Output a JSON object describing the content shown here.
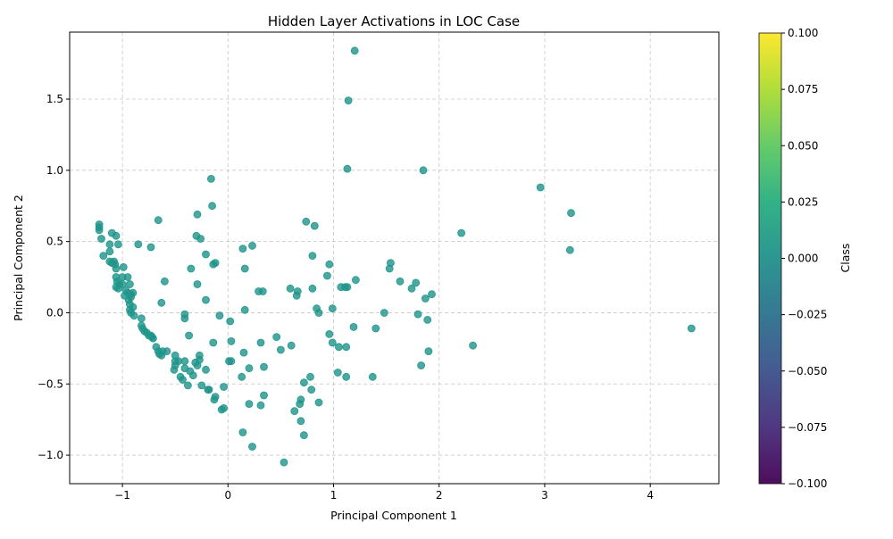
{
  "chart_data": {
    "type": "scatter",
    "title": "Hidden Layer Activations in LOC Case",
    "xlabel": "Principal Component 1",
    "ylabel": "Principal Component 2",
    "xlim": [
      -1.5,
      4.65
    ],
    "ylim": [
      -1.2,
      1.97
    ],
    "xticks": [
      -1,
      0,
      1,
      2,
      3,
      4
    ],
    "xtick_labels": [
      "−1",
      "0",
      "1",
      "2",
      "3",
      "4"
    ],
    "yticks": [
      -1.0,
      -0.5,
      0.0,
      0.5,
      1.0,
      1.5
    ],
    "ytick_labels": [
      "−1.0",
      "−0.5",
      "0.0",
      "0.5",
      "1.0",
      "1.5"
    ],
    "grid": true,
    "point_color": "#21918c",
    "point_alpha": 0.8,
    "colorbar": {
      "label": "Class",
      "range": [
        -0.1,
        0.1
      ],
      "ticks": [
        -0.1,
        -0.075,
        -0.05,
        -0.025,
        0.0,
        0.025,
        0.05,
        0.075,
        0.1
      ],
      "tick_labels": [
        "−0.100",
        "−0.075",
        "−0.050",
        "−0.025",
        "0.000",
        "0.025",
        "0.050",
        "0.075",
        "0.100"
      ],
      "colormap": "viridis"
    },
    "points": [
      [
        -1.22,
        0.62
      ],
      [
        -1.22,
        0.6
      ],
      [
        -1.22,
        0.58
      ],
      [
        -1.2,
        0.52
      ],
      [
        -1.18,
        0.4
      ],
      [
        -1.12,
        0.48
      ],
      [
        -1.12,
        0.43
      ],
      [
        -1.1,
        0.56
      ],
      [
        -1.06,
        0.54
      ],
      [
        -1.04,
        0.48
      ],
      [
        -1.12,
        0.36
      ],
      [
        -1.1,
        0.35
      ],
      [
        -1.08,
        0.36
      ],
      [
        -1.07,
        0.34
      ],
      [
        -1.06,
        0.31
      ],
      [
        -1.06,
        0.25
      ],
      [
        -1.05,
        0.22
      ],
      [
        -1.06,
        0.18
      ],
      [
        -1.04,
        0.17
      ],
      [
        -1.03,
        0.2
      ],
      [
        -1.0,
        0.25
      ],
      [
        -1.0,
        0.2
      ],
      [
        -0.99,
        0.32
      ],
      [
        -0.97,
        0.16
      ],
      [
        -0.95,
        0.25
      ],
      [
        -0.93,
        0.2
      ],
      [
        -0.92,
        0.13
      ],
      [
        -0.98,
        0.12
      ],
      [
        -0.95,
        0.14
      ],
      [
        -0.94,
        0.09
      ],
      [
        -0.92,
        0.11
      ],
      [
        -0.9,
        0.14
      ],
      [
        -0.93,
        0.06
      ],
      [
        -0.93,
        0.02
      ],
      [
        -0.92,
        0.0
      ],
      [
        -0.9,
        0.04
      ],
      [
        -0.89,
        -0.02
      ],
      [
        -0.85,
        0.48
      ],
      [
        -0.73,
        0.46
      ],
      [
        -0.66,
        0.65
      ],
      [
        -0.82,
        -0.04
      ],
      [
        -0.82,
        -0.09
      ],
      [
        -0.81,
        -0.11
      ],
      [
        -0.79,
        -0.13
      ],
      [
        -0.77,
        -0.14
      ],
      [
        -0.75,
        -0.16
      ],
      [
        -0.73,
        -0.16
      ],
      [
        -0.72,
        -0.17
      ],
      [
        -0.71,
        -0.18
      ],
      [
        -0.68,
        -0.24
      ],
      [
        -0.66,
        -0.27
      ],
      [
        -0.65,
        -0.29
      ],
      [
        -0.63,
        -0.3
      ],
      [
        -0.62,
        -0.27
      ],
      [
        -0.58,
        -0.27
      ],
      [
        -0.6,
        0.22
      ],
      [
        -0.63,
        0.07
      ],
      [
        -0.5,
        -0.3
      ],
      [
        -0.5,
        -0.34
      ],
      [
        -0.5,
        -0.37
      ],
      [
        -0.51,
        -0.4
      ],
      [
        -0.47,
        -0.34
      ],
      [
        -0.45,
        -0.45
      ],
      [
        -0.43,
        -0.47
      ],
      [
        -0.41,
        -0.34
      ],
      [
        -0.41,
        -0.39
      ],
      [
        -0.38,
        -0.51
      ],
      [
        -0.36,
        -0.41
      ],
      [
        -0.33,
        -0.44
      ],
      [
        -0.31,
        -0.35
      ],
      [
        -0.29,
        -0.37
      ],
      [
        -0.27,
        -0.3
      ],
      [
        -0.27,
        -0.33
      ],
      [
        -0.25,
        -0.51
      ],
      [
        -0.21,
        -0.4
      ],
      [
        -0.19,
        -0.54
      ],
      [
        -0.18,
        -0.54
      ],
      [
        -0.13,
        -0.61
      ],
      [
        -0.12,
        -0.59
      ],
      [
        -0.06,
        -0.68
      ],
      [
        -0.04,
        -0.67
      ],
      [
        -0.04,
        -0.52
      ],
      [
        -0.41,
        -0.01
      ],
      [
        -0.41,
        -0.04
      ],
      [
        -0.37,
        -0.16
      ],
      [
        -0.35,
        0.31
      ],
      [
        -0.3,
        0.54
      ],
      [
        -0.29,
        0.69
      ],
      [
        -0.29,
        0.2
      ],
      [
        -0.26,
        0.52
      ],
      [
        -0.21,
        0.41
      ],
      [
        -0.21,
        0.09
      ],
      [
        -0.16,
        0.94
      ],
      [
        -0.15,
        0.75
      ],
      [
        -0.14,
        0.34
      ],
      [
        -0.12,
        0.35
      ],
      [
        -0.14,
        -0.21
      ],
      [
        -0.08,
        -0.02
      ],
      [
        0.01,
        -0.34
      ],
      [
        0.02,
        -0.06
      ],
      [
        0.03,
        -0.2
      ],
      [
        0.03,
        -0.34
      ],
      [
        0.13,
        -0.45
      ],
      [
        0.15,
        -0.28
      ],
      [
        0.14,
        -0.84
      ],
      [
        0.14,
        0.45
      ],
      [
        0.16,
        0.31
      ],
      [
        0.16,
        0.02
      ],
      [
        0.2,
        -0.39
      ],
      [
        0.2,
        -0.64
      ],
      [
        0.23,
        -0.94
      ],
      [
        0.23,
        0.47
      ],
      [
        0.29,
        0.15
      ],
      [
        0.31,
        -0.21
      ],
      [
        0.31,
        -0.65
      ],
      [
        0.33,
        0.15
      ],
      [
        0.34,
        -0.38
      ],
      [
        0.34,
        -0.58
      ],
      [
        0.46,
        -0.17
      ],
      [
        0.5,
        -0.26
      ],
      [
        0.53,
        -1.05
      ],
      [
        0.59,
        0.17
      ],
      [
        0.6,
        -0.23
      ],
      [
        0.63,
        -0.69
      ],
      [
        0.65,
        0.12
      ],
      [
        0.66,
        0.15
      ],
      [
        0.68,
        -0.64
      ],
      [
        0.69,
        -0.61
      ],
      [
        0.69,
        -0.76
      ],
      [
        0.72,
        -0.86
      ],
      [
        0.72,
        -0.49
      ],
      [
        0.74,
        0.64
      ],
      [
        0.78,
        -0.45
      ],
      [
        0.79,
        -0.54
      ],
      [
        0.8,
        0.4
      ],
      [
        0.8,
        0.17
      ],
      [
        0.82,
        0.61
      ],
      [
        0.84,
        0.03
      ],
      [
        0.86,
        0.0
      ],
      [
        0.86,
        -0.63
      ],
      [
        0.94,
        0.26
      ],
      [
        0.96,
        0.34
      ],
      [
        0.96,
        -0.15
      ],
      [
        0.99,
        -0.21
      ],
      [
        0.99,
        0.03
      ],
      [
        1.04,
        -0.42
      ],
      [
        1.05,
        -0.24
      ],
      [
        1.07,
        0.18
      ],
      [
        1.11,
        0.18
      ],
      [
        1.12,
        -0.24
      ],
      [
        1.12,
        -0.45
      ],
      [
        1.13,
        0.18
      ],
      [
        1.13,
        1.01
      ],
      [
        1.14,
        1.49
      ],
      [
        1.19,
        -0.1
      ],
      [
        1.2,
        1.84
      ],
      [
        1.21,
        0.23
      ],
      [
        1.37,
        -0.45
      ],
      [
        1.4,
        -0.11
      ],
      [
        1.48,
        0.0
      ],
      [
        1.53,
        0.31
      ],
      [
        1.54,
        0.35
      ],
      [
        1.63,
        0.22
      ],
      [
        1.74,
        0.17
      ],
      [
        1.78,
        0.21
      ],
      [
        1.8,
        -0.01
      ],
      [
        1.83,
        -0.37
      ],
      [
        1.85,
        1.0
      ],
      [
        1.87,
        0.1
      ],
      [
        1.89,
        -0.05
      ],
      [
        1.9,
        -0.27
      ],
      [
        1.93,
        0.13
      ],
      [
        2.21,
        0.56
      ],
      [
        2.32,
        -0.23
      ],
      [
        2.96,
        0.88
      ],
      [
        3.24,
        0.44
      ],
      [
        3.25,
        0.7
      ],
      [
        4.39,
        -0.11
      ]
    ]
  }
}
